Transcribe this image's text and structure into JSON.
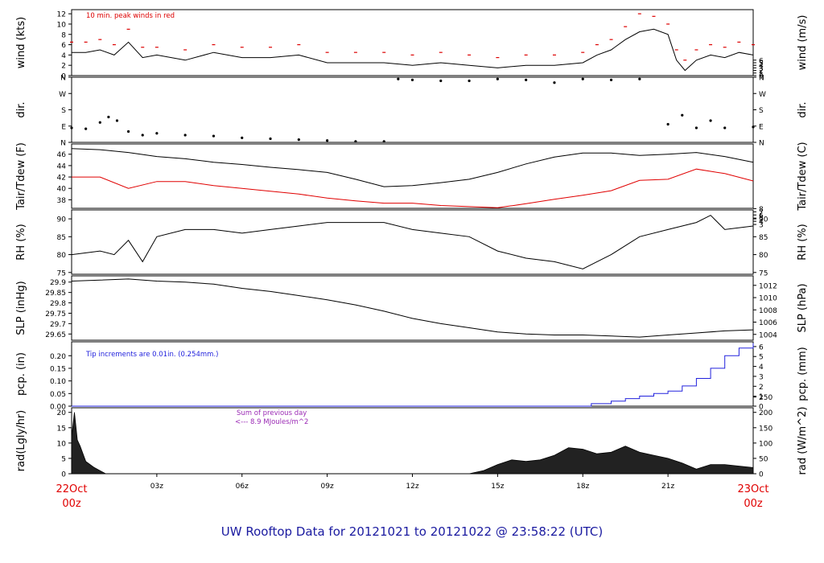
{
  "title": "UW Rooftop Data for 20121021  to  20121022 @ 23:58:22  (UTC)",
  "x_axis": {
    "ticks": [
      "03z",
      "06z",
      "09z",
      "12z",
      "15z",
      "18z",
      "21z"
    ],
    "tick_hours": [
      3,
      6,
      9,
      12,
      15,
      18,
      21
    ],
    "start": {
      "date": "22Oct",
      "time": "00z"
    },
    "end": {
      "date": "23Oct",
      "time": "00z"
    },
    "range_hours": [
      0,
      24
    ]
  },
  "colors": {
    "title": "#1a1aa0",
    "peak": "#dd0000",
    "dew": "#e00000",
    "precip": "#2222dd",
    "solar_note": "#9b2bb5",
    "date": "#e00000"
  },
  "chart_data": [
    {
      "type": "line",
      "ylabel": "wind (kts)",
      "ylabel_right": "wind (m/s)",
      "yticks": [
        0,
        2,
        4,
        6,
        8,
        10,
        12
      ],
      "yticks_right": [
        0,
        1,
        2,
        3,
        4,
        5,
        6
      ],
      "ylim": [
        0,
        12.8
      ],
      "annotation": "10 min. peak winds in red",
      "x": [
        0,
        0.5,
        1,
        1.5,
        2,
        2.5,
        3,
        4,
        5,
        6,
        7,
        8,
        9,
        10,
        11,
        12,
        13,
        14,
        15,
        16,
        17,
        18,
        18.5,
        19,
        19.5,
        20,
        20.5,
        21,
        21.3,
        21.6,
        22,
        22.5,
        23,
        23.5,
        24
      ],
      "series": [
        {
          "values": [
            4.5,
            4.5,
            5.0,
            4.0,
            6.5,
            3.5,
            4.0,
            3.0,
            4.5,
            3.5,
            3.5,
            4.0,
            2.5,
            2.5,
            2.5,
            2.0,
            2.5,
            2.0,
            1.5,
            2.0,
            2.0,
            2.5,
            4.0,
            5.0,
            7.0,
            8.5,
            9.0,
            8.0,
            3.0,
            1.0,
            3.0,
            4.0,
            3.5,
            4.5,
            4.0
          ]
        },
        {
          "name": "10 min. peak winds in red",
          "values": [
            6.5,
            6.5,
            7.0,
            6.0,
            9.0,
            5.5,
            5.5,
            5.0,
            6.0,
            5.5,
            5.5,
            6.0,
            4.5,
            4.5,
            4.5,
            4.0,
            4.5,
            4.0,
            3.5,
            4.0,
            4.0,
            4.5,
            6.0,
            7.0,
            9.5,
            12.0,
            11.5,
            10.0,
            5.0,
            3.0,
            5.0,
            6.0,
            5.5,
            6.5,
            6.0
          ]
        }
      ]
    },
    {
      "type": "scatter",
      "ylabel": "dir.",
      "ylabel_right": "dir.",
      "yticks": [
        "N",
        "E",
        "S",
        "W",
        "N"
      ],
      "ylim": [
        0,
        360
      ],
      "x": [
        0,
        0.5,
        1,
        1.3,
        1.6,
        2,
        2.5,
        3,
        4,
        5,
        6,
        7,
        8,
        9,
        10,
        11,
        11.5,
        12,
        13,
        14,
        15,
        16,
        17,
        18,
        19,
        20,
        21,
        21.5,
        22,
        22.5,
        23,
        24
      ],
      "series": [
        {
          "values": [
            80,
            75,
            110,
            140,
            120,
            60,
            40,
            50,
            40,
            35,
            25,
            20,
            15,
            10,
            5,
            5,
            350,
            345,
            340,
            340,
            350,
            345,
            330,
            350,
            345,
            350,
            100,
            150,
            80,
            120,
            80,
            85
          ]
        }
      ]
    },
    {
      "type": "line",
      "ylabel": "Tair/Tdew (F)",
      "ylabel_right": "Tair/Tdew (C)",
      "yticks": [
        38,
        40,
        42,
        44,
        46
      ],
      "yticks_right": [
        3,
        4,
        5,
        6,
        7,
        8
      ],
      "ylim": [
        36.5,
        47.8
      ],
      "x": [
        0,
        1,
        2,
        3,
        4,
        5,
        6,
        7,
        8,
        9,
        10,
        11,
        12,
        13,
        14,
        15,
        16,
        17,
        18,
        19,
        20,
        21,
        22,
        23,
        24
      ],
      "series": [
        {
          "values": [
            47.0,
            46.8,
            46.3,
            45.6,
            45.2,
            44.6,
            44.2,
            43.7,
            43.3,
            42.8,
            41.6,
            40.3,
            40.5,
            41.0,
            41.6,
            42.8,
            44.3,
            45.5,
            46.2,
            46.2,
            45.8,
            46.0,
            46.3,
            45.6,
            44.6
          ]
        },
        {
          "name": "Tdew",
          "values": [
            42.0,
            42.0,
            40.0,
            41.2,
            41.2,
            40.5,
            40.0,
            39.5,
            39.0,
            38.3,
            37.8,
            37.4,
            37.4,
            37.0,
            36.8,
            36.6,
            37.3,
            38.1,
            38.8,
            39.6,
            41.4,
            41.6,
            43.4,
            42.6,
            41.3
          ]
        }
      ]
    },
    {
      "type": "line",
      "ylabel": "RH (%)",
      "ylabel_right": "RH (%)",
      "yticks": [
        75,
        80,
        85,
        90
      ],
      "yticks_right": [
        75,
        80,
        85,
        90
      ],
      "ylim": [
        74.5,
        92.5
      ],
      "x": [
        0,
        1,
        1.5,
        2,
        2.5,
        3,
        4,
        5,
        6,
        7,
        8,
        9,
        10,
        11,
        12,
        13,
        14,
        15,
        16,
        17,
        18,
        18.5,
        19,
        20,
        21,
        22,
        22.5,
        23,
        24
      ],
      "series": [
        {
          "values": [
            80,
            81,
            80,
            84,
            78,
            85,
            87,
            87,
            86,
            87,
            88,
            89,
            89,
            89,
            87,
            86,
            85,
            81,
            79,
            78,
            76,
            78,
            80,
            85,
            87,
            89,
            91,
            87,
            88
          ]
        }
      ]
    },
    {
      "type": "line",
      "ylabel": "SLP (inHg)",
      "ylabel_right": "SLP (hPa)",
      "yticks": [
        29.65,
        29.7,
        29.75,
        29.8,
        29.85,
        29.9
      ],
      "yticks_right": [
        1004,
        1006,
        1008,
        1010,
        1012
      ],
      "ylim": [
        29.62,
        29.93
      ],
      "x": [
        0,
        1,
        2,
        3,
        4,
        5,
        6,
        7,
        8,
        9,
        10,
        11,
        12,
        13,
        14,
        15,
        16,
        17,
        18,
        19,
        20,
        21,
        22,
        23,
        24
      ],
      "series": [
        {
          "values": [
            29.905,
            29.91,
            29.915,
            29.905,
            29.9,
            29.89,
            29.87,
            29.855,
            29.835,
            29.815,
            29.79,
            29.76,
            29.725,
            29.7,
            29.68,
            29.66,
            29.65,
            29.645,
            29.645,
            29.64,
            29.635,
            29.645,
            29.655,
            29.665,
            29.67
          ]
        }
      ]
    },
    {
      "type": "line",
      "ylabel": "pcp. (in)",
      "ylabel_right": "pcp. (mm)",
      "yticks": [
        "0.00",
        "0.05",
        "0.10",
        "0.15",
        "0.20"
      ],
      "yticks_right": [
        0,
        1,
        2,
        3,
        4,
        5,
        6
      ],
      "ylim": [
        0,
        0.255
      ],
      "annotation": "Tip increments are 0.01in. (0.254mm.)",
      "x": [
        0,
        18,
        18.3,
        19,
        19.5,
        20,
        20.5,
        21,
        21.5,
        22,
        22.5,
        23,
        23.5,
        24
      ],
      "series": [
        {
          "values": [
            0,
            0,
            0.01,
            0.02,
            0.03,
            0.04,
            0.05,
            0.06,
            0.08,
            0.11,
            0.15,
            0.2,
            0.23,
            0.25
          ]
        }
      ]
    },
    {
      "type": "area",
      "ylabel": "rad(Lgly/hr)",
      "ylabel_right": "rad (W/m^2)",
      "yticks": [
        0,
        5,
        10,
        15,
        20
      ],
      "yticks_right": [
        0,
        50,
        100,
        150,
        200,
        250
      ],
      "ylim": [
        0,
        21.5
      ],
      "annotation": {
        "line1": "Sum of previous day",
        "line2": "<--- 8.9 MJoules/m^2"
      },
      "x": [
        0,
        0.1,
        0.2,
        0.3,
        0.5,
        0.8,
        1,
        1.2,
        14,
        14.5,
        15,
        15.5,
        16,
        16.5,
        17,
        17.5,
        18,
        18.5,
        19,
        19.5,
        20,
        20.5,
        21,
        21.5,
        22,
        22.5,
        23,
        23.5,
        24
      ],
      "series": [
        {
          "values": [
            12,
            20,
            11,
            9,
            4,
            2,
            1,
            0,
            0,
            1,
            3,
            4.5,
            4,
            4.5,
            6,
            8.5,
            8,
            6.5,
            7,
            9,
            7,
            6,
            5,
            3.5,
            1.5,
            3,
            3,
            2.5,
            2
          ]
        }
      ]
    }
  ]
}
